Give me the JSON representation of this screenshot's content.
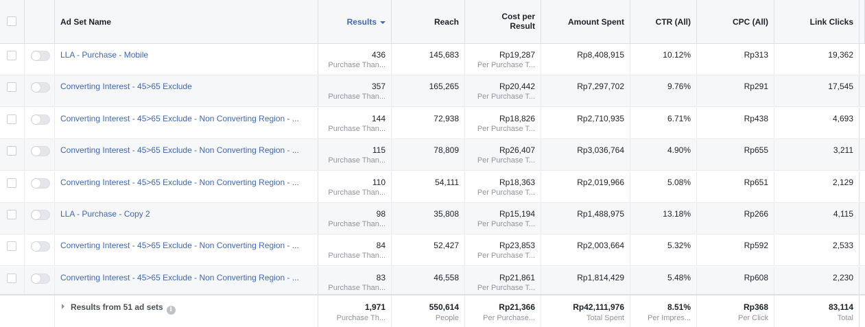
{
  "header": {
    "ad_set_name": "Ad Set Name",
    "results": "Results",
    "reach": "Reach",
    "cost_per_result_1": "Cost per",
    "cost_per_result_2": "Result",
    "amount_spent": "Amount Spent",
    "ctr": "CTR (All)",
    "cpc": "CPC (All)",
    "link_clicks": "Link Clicks"
  },
  "rows": [
    {
      "name": "LLA - Purchase - Mobile",
      "results": "436",
      "results_sub": "Purchase Than...",
      "reach": "145,683",
      "cpr": "Rp19,287",
      "cpr_sub": "Per Purchase T...",
      "amount": "Rp8,408,915",
      "ctr": "10.12%",
      "cpc": "Rp313",
      "link_clicks": "19,362"
    },
    {
      "name": "Converting Interest - 45>65 Exclude",
      "results": "357",
      "results_sub": "Purchase Than...",
      "reach": "165,265",
      "cpr": "Rp20,442",
      "cpr_sub": "Per Purchase T...",
      "amount": "Rp7,297,702",
      "ctr": "9.76%",
      "cpc": "Rp291",
      "link_clicks": "17,545"
    },
    {
      "name": "Converting Interest - 45>65 Exclude - Non Converting Region - ...",
      "results": "144",
      "results_sub": "Purchase Than...",
      "reach": "72,938",
      "cpr": "Rp18,826",
      "cpr_sub": "Per Purchase T...",
      "amount": "Rp2,710,935",
      "ctr": "6.71%",
      "cpc": "Rp438",
      "link_clicks": "4,693"
    },
    {
      "name": "Converting Interest - 45>65 Exclude - Non Converting Region - ...",
      "results": "115",
      "results_sub": "Purchase Than...",
      "reach": "78,809",
      "cpr": "Rp26,407",
      "cpr_sub": "Per Purchase T...",
      "amount": "Rp3,036,764",
      "ctr": "4.90%",
      "cpc": "Rp655",
      "link_clicks": "3,211"
    },
    {
      "name": "Converting Interest - 45>65 Exclude - Non Converting Region - ...",
      "results": "110",
      "results_sub": "Purchase Than...",
      "reach": "54,111",
      "cpr": "Rp18,363",
      "cpr_sub": "Per Purchase T...",
      "amount": "Rp2,019,966",
      "ctr": "5.08%",
      "cpc": "Rp651",
      "link_clicks": "2,129"
    },
    {
      "name": "LLA - Purchase - Copy 2",
      "results": "98",
      "results_sub": "Purchase Than...",
      "reach": "35,808",
      "cpr": "Rp15,194",
      "cpr_sub": "Per Purchase T...",
      "amount": "Rp1,488,975",
      "ctr": "13.18%",
      "cpc": "Rp266",
      "link_clicks": "4,115"
    },
    {
      "name": "Converting Interest - 45>65 Exclude - Non Converting Region - ...",
      "results": "84",
      "results_sub": "Purchase Than...",
      "reach": "52,427",
      "cpr": "Rp23,853",
      "cpr_sub": "Per Purchase T...",
      "amount": "Rp2,003,664",
      "ctr": "5.32%",
      "cpc": "Rp592",
      "link_clicks": "2,533"
    },
    {
      "name": "Converting Interest - 45>65 Exclude - Non Converting Region - ...",
      "results": "83",
      "results_sub": "Purchase Than...",
      "reach": "46,558",
      "cpr": "Rp21,861",
      "cpr_sub": "Per Purchase T...",
      "amount": "Rp1,814,429",
      "ctr": "5.48%",
      "cpc": "Rp608",
      "link_clicks": "2,230"
    }
  ],
  "footer": {
    "label": "Results from 51 ad sets",
    "info_glyph": "i",
    "results": "1,971",
    "results_sub": "Purchase Th...",
    "reach": "550,614",
    "reach_sub": "People",
    "cpr": "Rp21,366",
    "cpr_sub": "Per Purchase...",
    "amount": "Rp42,111,976",
    "amount_sub": "Total Spent",
    "ctr": "8.51%",
    "ctr_sub": "Per Impres...",
    "cpc": "Rp368",
    "cpc_sub": "Per Click",
    "link_clicks": "83,114",
    "link_clicks_sub": "Total"
  },
  "colors": {
    "link": "#4267b2",
    "header_bg": "#f6f7f9",
    "alt_row_bg": "#f6f7f9",
    "muted_text": "#90949c"
  },
  "icons": {
    "sort": "caret-down-icon",
    "expand": "triangle-right-icon",
    "info": "info-icon"
  }
}
